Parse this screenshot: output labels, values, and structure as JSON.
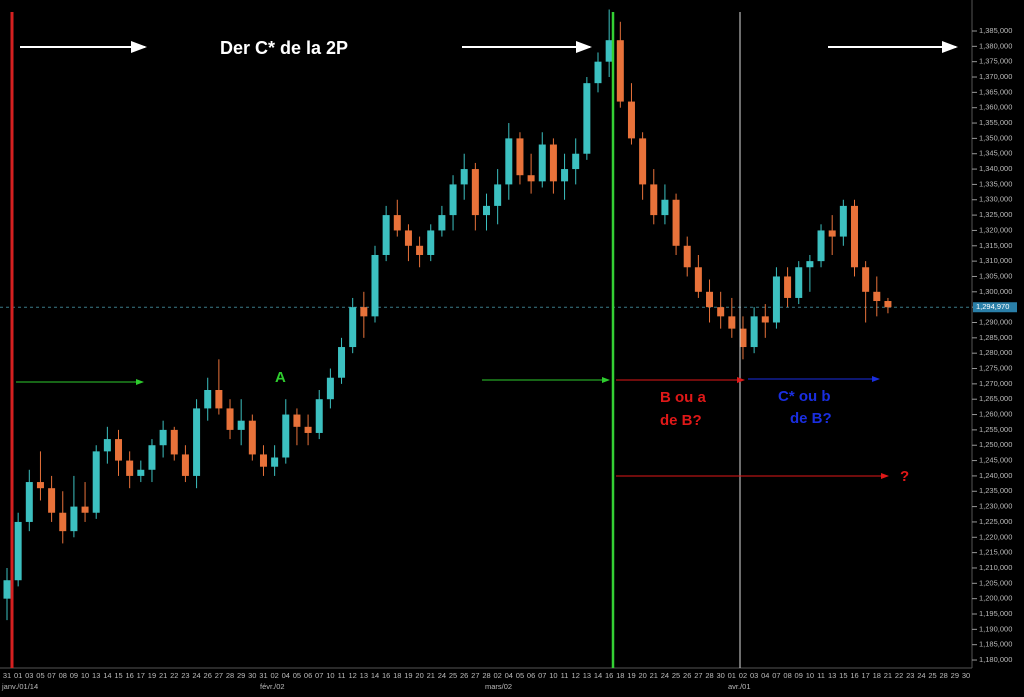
{
  "chart_data": {
    "type": "candlestick",
    "title": "Der C* de la 2P",
    "annotations": {
      "a": "A",
      "b": [
        "B ou a",
        "de B?"
      ],
      "c": [
        "C* ou b",
        "de B?"
      ],
      "q": "?"
    },
    "month_labels": [
      "janv./01/14",
      "févr./02",
      "mars/02",
      "avr./01"
    ],
    "categories": [
      "31",
      "01",
      "03",
      "05",
      "07",
      "08",
      "09",
      "10",
      "13",
      "14",
      "15",
      "16",
      "17",
      "19",
      "21",
      "22",
      "23",
      "24",
      "26",
      "27",
      "28",
      "29",
      "30",
      "31",
      "02",
      "04",
      "05",
      "06",
      "07",
      "10",
      "11",
      "12",
      "13",
      "14",
      "16",
      "18",
      "19",
      "20",
      "21",
      "24",
      "25",
      "26",
      "27",
      "28",
      "02",
      "04",
      "05",
      "06",
      "07",
      "10",
      "11",
      "12",
      "13",
      "14",
      "16",
      "18",
      "19",
      "20",
      "21",
      "24",
      "25",
      "26",
      "27",
      "28",
      "30",
      "01",
      "02",
      "03",
      "04",
      "07",
      "08",
      "09",
      "10",
      "11",
      "13",
      "15",
      "16",
      "17",
      "18",
      "21",
      "22",
      "23",
      "24",
      "25",
      "28",
      "29",
      "30"
    ],
    "open": [
      1200000,
      1206000,
      1225000,
      1238000,
      1236000,
      1228000,
      1222000,
      1230000,
      1228000,
      1248000,
      1252000,
      1245000,
      1240000,
      1242000,
      1250000,
      1255000,
      1247000,
      1240000,
      1262000,
      1268000,
      1262000,
      1255000,
      1258000,
      1247000,
      1243000,
      1246000,
      1260000,
      1256000,
      1254000,
      1265000,
      1272000,
      1282000,
      1295000,
      1292000,
      1312000,
      1325000,
      1320000,
      1315000,
      1312000,
      1320000,
      1325000,
      1335000,
      1340000,
      1325000,
      1328000,
      1335000,
      1350000,
      1338000,
      1336000,
      1348000,
      1336000,
      1340000,
      1345000,
      1368000,
      1375000,
      1382000,
      1362000,
      1350000,
      1335000,
      1325000,
      1330000,
      1315000,
      1308000,
      1300000,
      1295000,
      1292000,
      1288000,
      1282000,
      1292000,
      1290000,
      1305000,
      1298000,
      1308000,
      1310000,
      1320000,
      1318000,
      1328000,
      1308000,
      1300000,
      1297000,
      null,
      null,
      null,
      null,
      null,
      null,
      null
    ],
    "high": [
      1210000,
      1228000,
      1242000,
      1248000,
      1240000,
      1235000,
      1240000,
      1238000,
      1250000,
      1256000,
      1255000,
      1248000,
      1245000,
      1252000,
      1258000,
      1256000,
      1250000,
      1265000,
      1272000,
      1278000,
      1265000,
      1265000,
      1260000,
      1250000,
      1250000,
      1265000,
      1262000,
      1260000,
      1268000,
      1275000,
      1285000,
      1298000,
      1300000,
      1315000,
      1328000,
      1330000,
      1322000,
      1318000,
      1322000,
      1328000,
      1338000,
      1345000,
      1342000,
      1332000,
      1340000,
      1355000,
      1352000,
      1345000,
      1352000,
      1350000,
      1345000,
      1350000,
      1370000,
      1378000,
      1392000,
      1388000,
      1368000,
      1352000,
      1340000,
      1335000,
      1332000,
      1318000,
      1312000,
      1304000,
      1300000,
      1298000,
      1292000,
      1295000,
      1296000,
      1308000,
      1308000,
      1310000,
      1312000,
      1322000,
      1325000,
      1330000,
      1330000,
      1310000,
      1305000,
      1298000,
      null,
      null,
      null,
      null,
      null,
      null,
      null
    ],
    "low": [
      1193000,
      1204000,
      1222000,
      1232000,
      1225000,
      1218000,
      1220000,
      1225000,
      1226000,
      1244000,
      1240000,
      1236000,
      1238000,
      1238000,
      1246000,
      1245000,
      1238000,
      1236000,
      1258000,
      1260000,
      1252000,
      1250000,
      1245000,
      1240000,
      1240000,
      1244000,
      1250000,
      1250000,
      1252000,
      1262000,
      1270000,
      1280000,
      1285000,
      1290000,
      1310000,
      1318000,
      1310000,
      1308000,
      1310000,
      1318000,
      1320000,
      1330000,
      1320000,
      1320000,
      1322000,
      1330000,
      1335000,
      1332000,
      1334000,
      1332000,
      1330000,
      1335000,
      1343000,
      1365000,
      1370000,
      1360000,
      1348000,
      1330000,
      1322000,
      1322000,
      1312000,
      1305000,
      1298000,
      1290000,
      1288000,
      1285000,
      1278000,
      1280000,
      1285000,
      1288000,
      1295000,
      1296000,
      1300000,
      1308000,
      1312000,
      1315000,
      1305000,
      1290000,
      1292000,
      1293000,
      null,
      null,
      null,
      null,
      null,
      null,
      null
    ],
    "close": [
      1206000,
      1225000,
      1238000,
      1236000,
      1228000,
      1222000,
      1230000,
      1228000,
      1248000,
      1252000,
      1245000,
      1240000,
      1242000,
      1250000,
      1255000,
      1247000,
      1240000,
      1262000,
      1268000,
      1262000,
      1255000,
      1258000,
      1247000,
      1243000,
      1246000,
      1260000,
      1256000,
      1254000,
      1265000,
      1272000,
      1282000,
      1295000,
      1292000,
      1312000,
      1325000,
      1320000,
      1315000,
      1312000,
      1320000,
      1325000,
      1335000,
      1340000,
      1325000,
      1328000,
      1335000,
      1350000,
      1338000,
      1336000,
      1348000,
      1336000,
      1340000,
      1345000,
      1368000,
      1375000,
      1382000,
      1362000,
      1350000,
      1335000,
      1325000,
      1330000,
      1315000,
      1308000,
      1300000,
      1295000,
      1292000,
      1288000,
      1282000,
      1292000,
      1290000,
      1305000,
      1298000,
      1308000,
      1310000,
      1320000,
      1318000,
      1328000,
      1308000,
      1300000,
      1297000,
      1294970,
      null,
      null,
      null,
      null,
      null,
      null,
      null
    ],
    "up_color": "#3cc0c0",
    "down_color": "#e8723a",
    "last_price": {
      "value": 1294970,
      "label": "1,294,970"
    },
    "ylim": [
      1177400,
      1395100
    ],
    "yticks": [
      {
        "value": 1180000,
        "label": "1,180,000"
      },
      {
        "value": 1185000,
        "label": "1,185,000"
      },
      {
        "value": 1190000,
        "label": "1,190,000"
      },
      {
        "value": 1195000,
        "label": "1,195,000"
      },
      {
        "value": 1200000,
        "label": "1,200,000"
      },
      {
        "value": 1205000,
        "label": "1,205,000"
      },
      {
        "value": 1210000,
        "label": "1,210,000"
      },
      {
        "value": 1215000,
        "label": "1,215,000"
      },
      {
        "value": 1220000,
        "label": "1,220,000"
      },
      {
        "value": 1225000,
        "label": "1,225,000"
      },
      {
        "value": 1230000,
        "label": "1,230,000"
      },
      {
        "value": 1235000,
        "label": "1,235,000"
      },
      {
        "value": 1240000,
        "label": "1,240,000"
      },
      {
        "value": 1245000,
        "label": "1,245,000"
      },
      {
        "value": 1250000,
        "label": "1,250,000"
      },
      {
        "value": 1255000,
        "label": "1,255,000"
      },
      {
        "value": 1260000,
        "label": "1,260,000"
      },
      {
        "value": 1265000,
        "label": "1,265,000"
      },
      {
        "value": 1270000,
        "label": "1,270,000"
      },
      {
        "value": 1275000,
        "label": "1,275,000"
      },
      {
        "value": 1280000,
        "label": "1,280,000"
      },
      {
        "value": 1285000,
        "label": "1,285,000"
      },
      {
        "value": 1290000,
        "label": "1,290,000"
      },
      {
        "value": 1295000,
        "label": "1,295,000"
      },
      {
        "value": 1300000,
        "label": "1,300,000"
      },
      {
        "value": 1305000,
        "label": "1,305,000"
      },
      {
        "value": 1310000,
        "label": "1,310,000"
      },
      {
        "value": 1315000,
        "label": "1,315,000"
      },
      {
        "value": 1320000,
        "label": "1,320,000"
      },
      {
        "value": 1325000,
        "label": "1,325,000"
      },
      {
        "value": 1330000,
        "label": "1,330,000"
      },
      {
        "value": 1335000,
        "label": "1,335,000"
      },
      {
        "value": 1340000,
        "label": "1,340,000"
      },
      {
        "value": 1345000,
        "label": "1,345,000"
      },
      {
        "value": 1350000,
        "label": "1,350,000"
      },
      {
        "value": 1355000,
        "label": "1,355,000"
      },
      {
        "value": 1360000,
        "label": "1,360,000"
      },
      {
        "value": 1365000,
        "label": "1,365,000"
      },
      {
        "value": 1370000,
        "label": "1,370,000"
      },
      {
        "value": 1375000,
        "label": "1,375,000"
      },
      {
        "value": 1380000,
        "label": "1,380,000"
      },
      {
        "value": 1385000,
        "label": "1,385,000"
      }
    ]
  }
}
